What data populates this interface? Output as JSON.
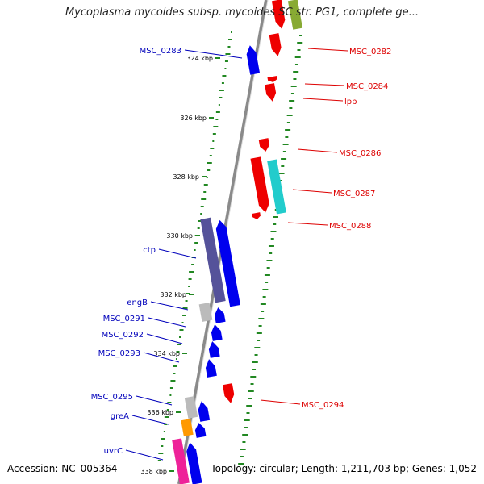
{
  "title": "Mycoplasma mycoides subsp. mycoides SC str. PG1, complete ge...",
  "footer": {
    "accession": "Accession: NC_005364",
    "topology": "Topology: circular; Length: 1,211,703 bp; Genes: 1,052"
  },
  "scale_ticks": [
    "324 kbp",
    "326 kbp",
    "328 kbp",
    "330 kbp",
    "332 kbp",
    "334 kbp",
    "336 kbp",
    "338 kbp"
  ],
  "reverse_gene_labels": [
    "MSC_0283",
    "ctp",
    "engB",
    "MSC_0291",
    "MSC_0292",
    "MSC_0293",
    "MSC_0295",
    "greA",
    "uvrC"
  ],
  "forward_gene_labels": [
    "MSC_0282",
    "MSC_0284",
    "lpp",
    "MSC_0286",
    "MSC_0287",
    "MSC_0288",
    "MSC_0294"
  ],
  "colors": {
    "forward_label": "#dd0000",
    "reverse_label": "#0000bb",
    "forward_gene": "#ee0000",
    "reverse_gene": "#0000ee",
    "backbone": "#8a8a8a",
    "gc_dots": "#228822",
    "rna_cyan": "#22cccc",
    "purple_block": "#55529a",
    "orange_block": "#ff9900",
    "magenta_block": "#ee2299",
    "olive_block": "#88aa33",
    "grey_block": "#bbbbbb"
  }
}
